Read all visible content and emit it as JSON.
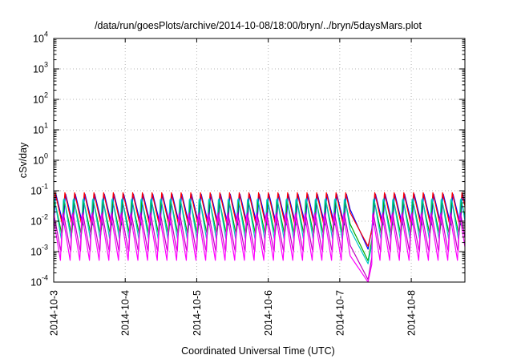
{
  "chart_data": {
    "type": "line",
    "title": "/data/run/goesPlots/archive/2014-10-08/18:00/bryn/../bryn/5daysMars.plot",
    "xlabel": "Coordinated Universal Time (UTC)",
    "ylabel": "cSv/day",
    "yscale": "log",
    "ylim": [
      0.0001,
      10000
    ],
    "xlim": [
      "2014-10-03",
      "2014-10-08 18:00"
    ],
    "x_ticks": [
      "2014-10-3",
      "2014-10-4",
      "2014-10-5",
      "2014-10-6",
      "2014-10-7",
      "2014-10-8"
    ],
    "y_ticks": [
      {
        "value": 0.0001,
        "base": "10",
        "exp": "-4"
      },
      {
        "value": 0.001,
        "base": "10",
        "exp": "-3"
      },
      {
        "value": 0.01,
        "base": "10",
        "exp": "-2"
      },
      {
        "value": 0.1,
        "base": "10",
        "exp": "-1"
      },
      {
        "value": 1,
        "base": "10",
        "exp": "0"
      },
      {
        "value": 10,
        "base": "10",
        "exp": "1"
      },
      {
        "value": 100,
        "base": "10",
        "exp": "2"
      },
      {
        "value": 1000,
        "base": "10",
        "exp": "3"
      },
      {
        "value": 10000,
        "base": "10",
        "exp": "4"
      }
    ],
    "grid": true,
    "oscillation_period_hours": 3.25,
    "dip": {
      "start": "2014-10-07 03:30",
      "min": "2014-10-07 09:30",
      "recover": "2014-10-07 11:00"
    },
    "series": [
      {
        "color": "#0000ff",
        "peak": 0.085,
        "trough": 0.0075,
        "dip_min": 0.0012
      },
      {
        "color": "#ff0000",
        "peak": 0.09,
        "trough": 0.0065,
        "dip_min": 0.0015
      },
      {
        "color": "#00aa00",
        "peak": 0.05,
        "trough": 0.0032,
        "dip_min": 0.0005
      },
      {
        "color": "#00c8c8",
        "peak": 0.07,
        "trough": 0.0022,
        "dip_min": 0.0004
      },
      {
        "color": "#c000c0",
        "peak": 0.022,
        "trough": 0.0009,
        "dip_min": 0.00012
      },
      {
        "color": "#ff00ff",
        "peak": 0.018,
        "trough": 0.0005,
        "dip_min": 0.0001
      }
    ]
  }
}
